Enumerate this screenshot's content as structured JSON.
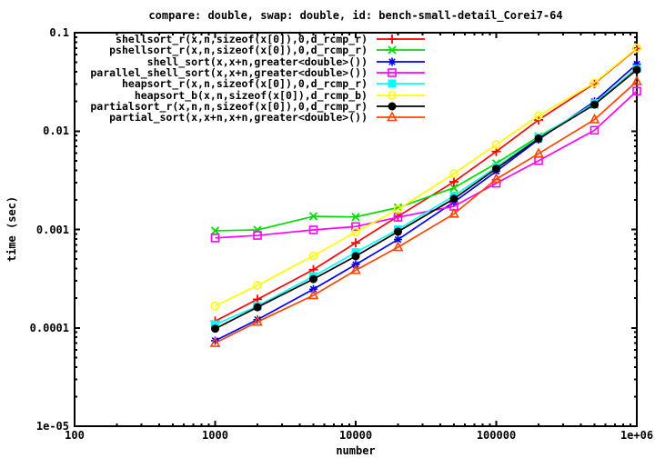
{
  "window": {
    "background": "#ffffff",
    "axis_color": "#000000"
  },
  "chart_data": {
    "type": "line",
    "title": "compare: double, swap: double, id: bench-small-detail_Corei7-64",
    "xlabel": "number",
    "ylabel": "time (sec)",
    "x_scale": "log",
    "y_scale": "log",
    "xlim": [
      100,
      1000000
    ],
    "ylim": [
      1e-05,
      0.1
    ],
    "grid": false,
    "legend_position": "top-left-inside",
    "x_ticks": [
      {
        "value": 100,
        "label": "100"
      },
      {
        "value": 1000,
        "label": "1000"
      },
      {
        "value": 10000,
        "label": "10000"
      },
      {
        "value": 100000,
        "label": "100000"
      },
      {
        "value": 1000000,
        "label": "1e+06"
      }
    ],
    "y_ticks": [
      {
        "value": 0.1,
        "label": "0.1"
      },
      {
        "value": 0.01,
        "label": "0.01"
      },
      {
        "value": 0.001,
        "label": "0.001"
      },
      {
        "value": 0.0001,
        "label": "0.0001"
      },
      {
        "value": 1e-05,
        "label": "1e-05"
      }
    ],
    "x": [
      1000,
      2000,
      5000,
      10000,
      20000,
      50000,
      100000,
      200000,
      500000,
      1000000
    ],
    "series": [
      {
        "name": "shellsort_r(x,n,sizeof(x[0]),0,d_rcmp_r)",
        "color": "#ff0000",
        "marker": "plus",
        "values": [
          0.000117,
          0.000195,
          0.00039,
          0.00073,
          0.00136,
          0.00305,
          0.0062,
          0.013,
          0.0305,
          0.069
        ]
      },
      {
        "name": "pshellsort_r(x,n,sizeof(x[0]),0,d_rcmp_r)",
        "color": "#00dd00",
        "marker": "cross",
        "values": [
          0.00097,
          0.00099,
          0.00136,
          0.00134,
          0.00167,
          0.00265,
          0.0047,
          0.0088,
          0.0185,
          0.044
        ]
      },
      {
        "name": "shell_sort(x,x+n,greater<double>())",
        "color": "#0000ee",
        "marker": "asterisk",
        "values": [
          7.4e-05,
          0.000121,
          0.000247,
          0.00044,
          0.00079,
          0.0019,
          0.0039,
          0.0082,
          0.02,
          0.048
        ]
      },
      {
        "name": "parallel_shell_sort(x,x+n,greater<double>())",
        "color": "#ff00ff",
        "marker": "square-open",
        "values": [
          0.00082,
          0.00087,
          0.00099,
          0.00107,
          0.00133,
          0.00172,
          0.00295,
          0.005,
          0.0102,
          0.0255
        ]
      },
      {
        "name": "heapsort_r(x,n,sizeof(x[0]),0,d_rcmp_r)",
        "color": "#00ffff",
        "marker": "square-filled",
        "values": [
          0.000108,
          0.000166,
          0.000334,
          0.000585,
          0.001,
          0.0022,
          0.0043,
          0.0086,
          0.0192,
          0.043
        ]
      },
      {
        "name": "heapsort_b(x,n,sizeof(x[0]),d_rcmp_b)",
        "color": "#ffff00",
        "marker": "circle-open",
        "values": [
          0.000167,
          0.00027,
          0.00054,
          0.00094,
          0.0016,
          0.0037,
          0.0073,
          0.0143,
          0.031,
          0.07
        ]
      },
      {
        "name": "partialsort_r(x,n,n,sizeof(x[0]),0,d_rcmp_r)",
        "color": "#000000",
        "marker": "circle-filled",
        "values": [
          9.8e-05,
          0.000162,
          0.000313,
          0.000535,
          0.00095,
          0.00205,
          0.00415,
          0.0084,
          0.0186,
          0.042
        ]
      },
      {
        "name": "partial_sort(x,x+n,x+n,greater<double>())",
        "color": "#ff4500",
        "marker": "triangle-open",
        "values": [
          7e-05,
          0.000115,
          0.000214,
          0.000385,
          0.00066,
          0.00144,
          0.00325,
          0.0059,
          0.0131,
          0.032
        ]
      }
    ]
  }
}
